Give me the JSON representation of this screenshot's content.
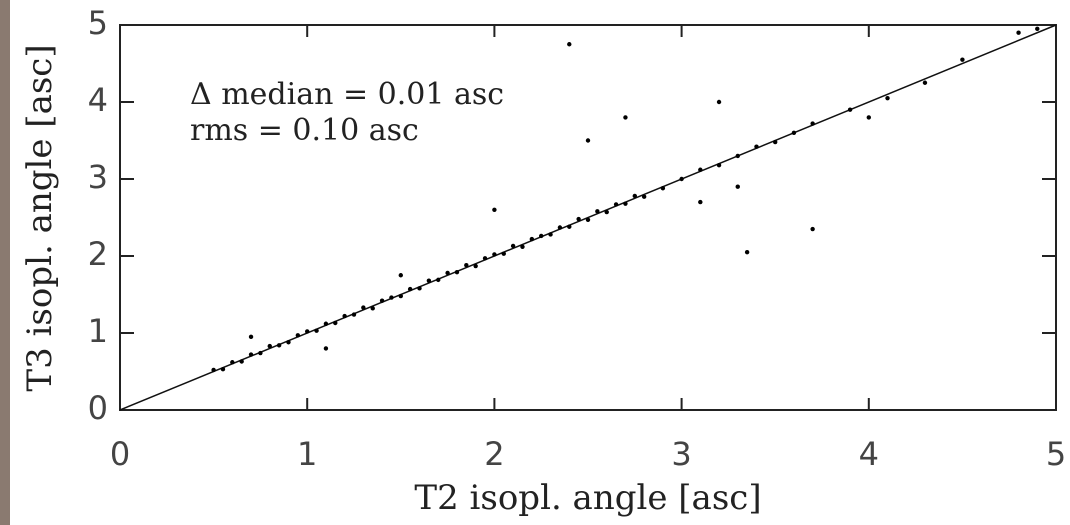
{
  "chart_data": {
    "type": "scatter",
    "xlabel": "T2 isopl. angle [asc]",
    "ylabel": "T3 isopl. angle [asc]",
    "annotations": [
      "Δ median = 0.01 asc",
      "rms = 0.10 asc"
    ],
    "color": "#000000",
    "x": [
      0.5,
      0.55,
      0.6,
      0.65,
      0.7,
      0.75,
      0.8,
      0.85,
      0.9,
      0.95,
      1.0,
      1.05,
      1.1,
      1.15,
      1.2,
      1.25,
      1.3,
      1.35,
      1.4,
      1.45,
      1.5,
      1.55,
      1.6,
      1.65,
      1.7,
      1.75,
      1.8,
      1.85,
      1.9,
      1.95,
      2.0,
      2.05,
      2.1,
      2.15,
      2.2,
      2.25,
      2.3,
      2.35,
      2.4,
      2.45,
      2.5,
      2.55,
      2.6,
      2.65,
      2.7,
      2.75,
      2.8,
      2.9,
      3.0,
      3.1,
      3.2,
      3.3,
      3.4,
      3.5,
      3.6,
      3.7,
      3.9,
      4.1,
      4.3,
      4.5,
      4.8,
      4.9,
      2.4,
      2.7,
      3.35,
      3.7,
      2.0,
      1.5,
      3.1,
      2.5,
      4.0,
      3.2,
      1.1,
      0.7,
      3.3
    ],
    "values": [
      0.52,
      0.53,
      0.62,
      0.63,
      0.72,
      0.74,
      0.83,
      0.84,
      0.88,
      0.97,
      1.02,
      1.03,
      1.12,
      1.13,
      1.22,
      1.24,
      1.33,
      1.32,
      1.42,
      1.46,
      1.48,
      1.57,
      1.58,
      1.68,
      1.69,
      1.78,
      1.79,
      1.88,
      1.87,
      1.97,
      2.02,
      2.03,
      2.13,
      2.12,
      2.22,
      2.26,
      2.28,
      2.37,
      2.38,
      2.48,
      2.47,
      2.58,
      2.57,
      2.67,
      2.68,
      2.78,
      2.77,
      2.88,
      3.0,
      3.12,
      3.18,
      3.3,
      3.42,
      3.48,
      3.6,
      3.72,
      3.9,
      4.05,
      4.25,
      4.55,
      4.9,
      4.95,
      4.75,
      3.8,
      2.05,
      2.35,
      2.6,
      1.75,
      2.7,
      3.5,
      3.8,
      4.0,
      0.8,
      0.95,
      2.9
    ],
    "xlim": [
      0,
      5
    ],
    "ylim": [
      0,
      5
    ],
    "xticks": [
      0,
      1,
      2,
      3,
      4,
      5
    ],
    "yticks": [
      0,
      1,
      2,
      3,
      4,
      5
    ]
  }
}
